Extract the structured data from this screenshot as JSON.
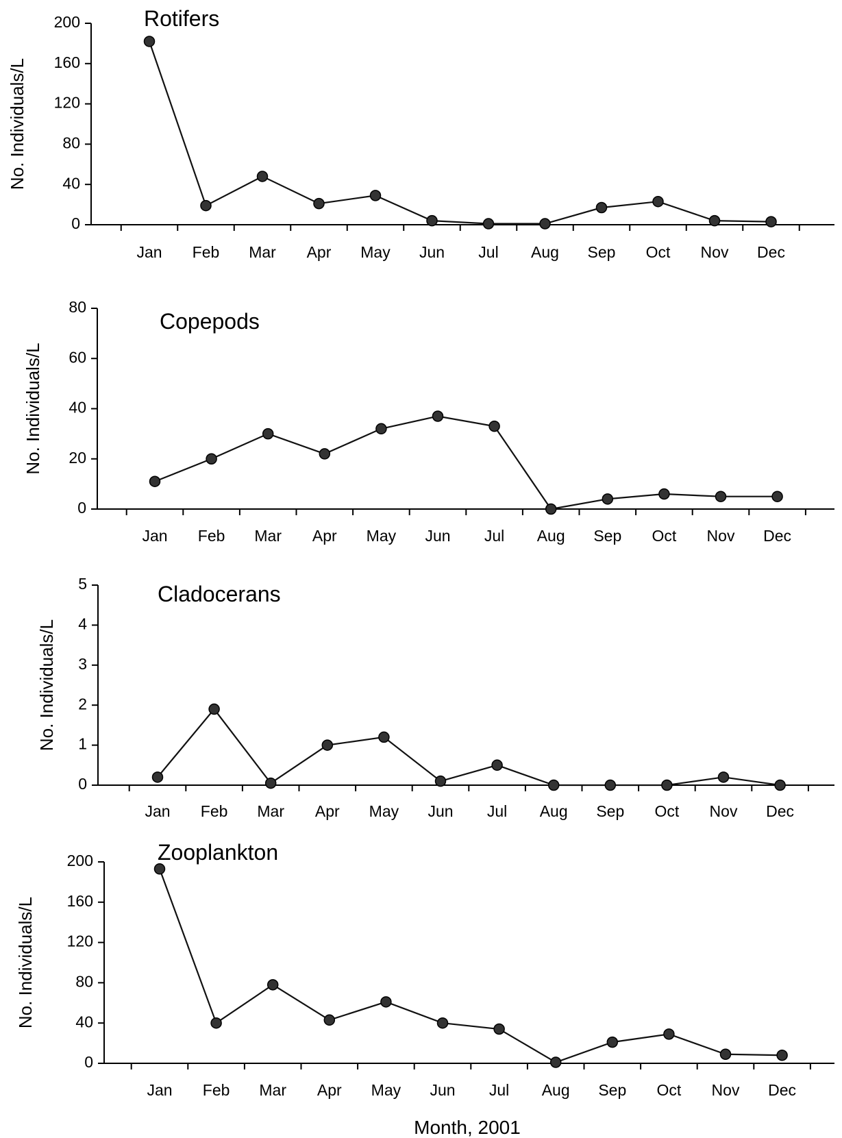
{
  "figure": {
    "xlabel": "Month, 2001"
  },
  "chart_data": [
    {
      "type": "line",
      "title": "Rotifers",
      "ylabel": "No. Individuals/L",
      "categories": [
        "Jan",
        "Feb",
        "Mar",
        "Apr",
        "May",
        "Jun",
        "Jul",
        "Aug",
        "Sep",
        "Oct",
        "Nov",
        "Dec"
      ],
      "values": [
        182,
        19,
        48,
        21,
        29,
        4,
        1,
        1,
        17,
        23,
        4,
        3
      ],
      "ylim": [
        0,
        200
      ],
      "yticks": [
        0,
        40,
        80,
        120,
        160,
        200
      ],
      "grid": false
    },
    {
      "type": "line",
      "title": "Copepods",
      "ylabel": "No. Individuals/L",
      "categories": [
        "Jan",
        "Feb",
        "Mar",
        "Apr",
        "May",
        "Jun",
        "Jul",
        "Aug",
        "Sep",
        "Oct",
        "Nov",
        "Dec"
      ],
      "values": [
        11,
        20,
        30,
        22,
        32,
        37,
        33,
        0,
        4,
        6,
        5,
        5
      ],
      "ylim": [
        0,
        80
      ],
      "yticks": [
        0,
        20,
        40,
        60,
        80
      ],
      "grid": false
    },
    {
      "type": "line",
      "title": "Cladocerans",
      "ylabel": "No. Individuals/L",
      "categories": [
        "Jan",
        "Feb",
        "Mar",
        "Apr",
        "May",
        "Jun",
        "Jul",
        "Aug",
        "Sep",
        "Oct",
        "Nov",
        "Dec"
      ],
      "values": [
        0.2,
        1.9,
        0.05,
        1.0,
        1.2,
        0.1,
        0.5,
        0,
        0,
        0,
        0.2,
        0
      ],
      "ylim": [
        0,
        5
      ],
      "yticks": [
        0,
        1,
        2,
        3,
        4,
        5
      ],
      "grid": false
    },
    {
      "type": "line",
      "title": "Zooplankton",
      "ylabel": "No. Individuals/L",
      "categories": [
        "Jan",
        "Feb",
        "Mar",
        "Apr",
        "May",
        "Jun",
        "Jul",
        "Aug",
        "Sep",
        "Oct",
        "Nov",
        "Dec"
      ],
      "values": [
        193,
        40,
        78,
        43,
        61,
        40,
        34,
        1,
        21,
        29,
        9,
        8
      ],
      "ylim": [
        0,
        200
      ],
      "yticks": [
        0,
        40,
        80,
        120,
        160,
        200
      ],
      "grid": false
    }
  ]
}
